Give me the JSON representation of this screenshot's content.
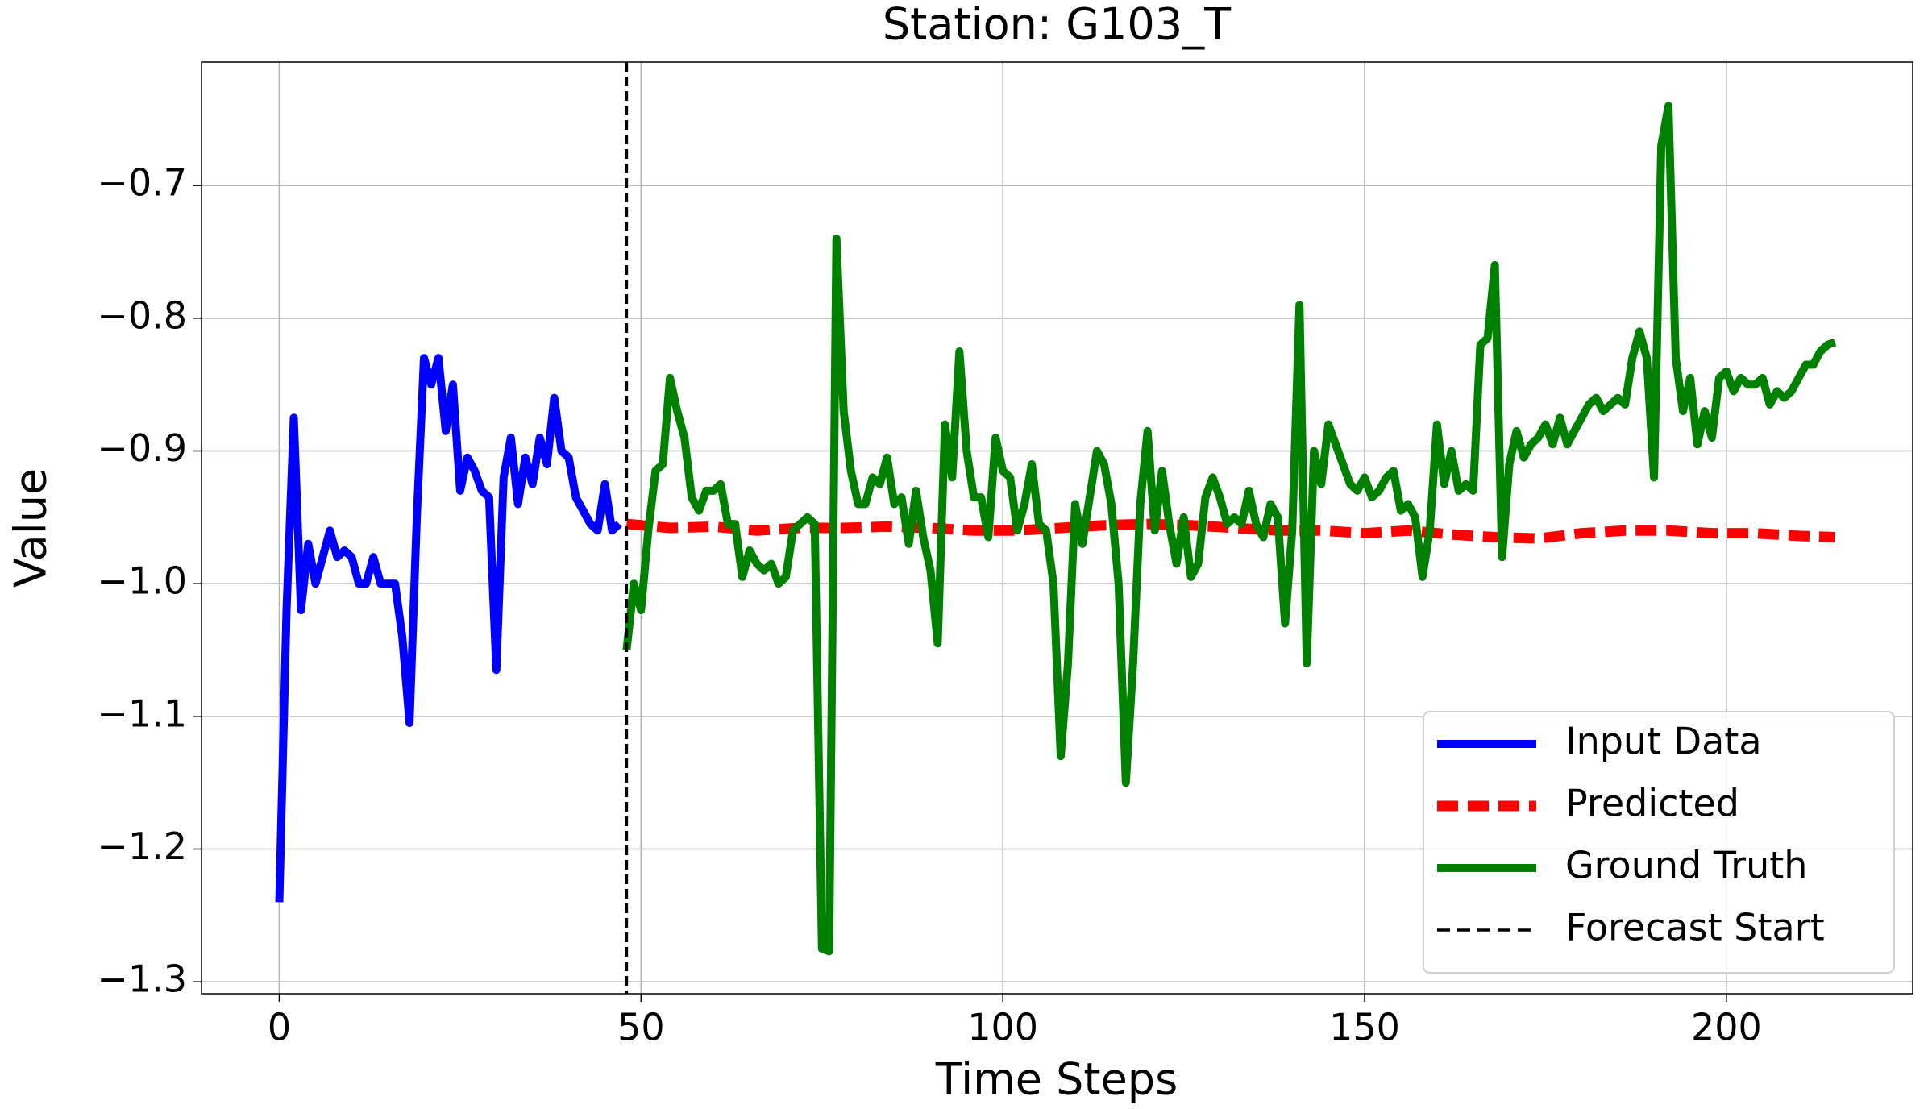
{
  "chart_data": {
    "type": "line",
    "title": "Station: G103_T",
    "xlabel": "Time Steps",
    "ylabel": "Value",
    "xlim": [
      -10.75,
      225.75
    ],
    "ylim": [
      -1.309,
      -0.607
    ],
    "xticks": [
      0,
      50,
      100,
      150,
      200
    ],
    "yticks": [
      {
        "value": -1.3,
        "label": "−1.3"
      },
      {
        "value": -1.2,
        "label": "−1.2"
      },
      {
        "value": -1.1,
        "label": "−1.1"
      },
      {
        "value": -1.0,
        "label": "−1.0"
      },
      {
        "value": -0.9,
        "label": "−0.9"
      },
      {
        "value": -0.8,
        "label": "−0.8"
      },
      {
        "value": -0.7,
        "label": "−0.7"
      }
    ],
    "grid": true,
    "legend": "lower right",
    "series": [
      {
        "name": "Input Data",
        "color": "#0000ff",
        "style": "solid",
        "x": [
          0,
          1,
          2,
          3,
          4,
          5,
          6,
          7,
          8,
          9,
          10,
          11,
          12,
          13,
          14,
          15,
          16,
          17,
          18,
          19,
          20,
          21,
          22,
          23,
          24,
          25,
          26,
          27,
          28,
          29,
          30,
          31,
          32,
          33,
          34,
          35,
          36,
          37,
          38,
          39,
          40,
          41,
          42,
          43,
          44,
          45,
          46,
          47
        ],
        "values": [
          -1.24,
          -1.02,
          -0.875,
          -1.02,
          -0.97,
          -1.0,
          -0.98,
          -0.96,
          -0.98,
          -0.975,
          -0.98,
          -1.0,
          -1.0,
          -0.98,
          -1.0,
          -1.0,
          -1.0,
          -1.04,
          -1.105,
          -0.95,
          -0.83,
          -0.85,
          -0.83,
          -0.885,
          -0.85,
          -0.93,
          -0.905,
          -0.915,
          -0.93,
          -0.935,
          -1.065,
          -0.92,
          -0.89,
          -0.94,
          -0.905,
          -0.925,
          -0.89,
          -0.91,
          -0.86,
          -0.9,
          -0.905,
          -0.935,
          -0.945,
          -0.955,
          -0.96,
          -0.925,
          -0.96,
          -0.955
        ]
      },
      {
        "name": "Predicted",
        "color": "#ff0000",
        "style": "dashed",
        "x": [
          48,
          54,
          60,
          66,
          72,
          78,
          84,
          90,
          96,
          102,
          108,
          114,
          120,
          126,
          132,
          138,
          144,
          150,
          156,
          162,
          168,
          174,
          180,
          186,
          192,
          198,
          204,
          210,
          215
        ],
        "values": [
          -0.955,
          -0.958,
          -0.957,
          -0.96,
          -0.958,
          -0.958,
          -0.957,
          -0.958,
          -0.96,
          -0.96,
          -0.958,
          -0.956,
          -0.955,
          -0.956,
          -0.958,
          -0.96,
          -0.96,
          -0.962,
          -0.96,
          -0.963,
          -0.965,
          -0.966,
          -0.962,
          -0.96,
          -0.96,
          -0.962,
          -0.962,
          -0.964,
          -0.965
        ]
      },
      {
        "name": "Ground Truth",
        "color": "#008000",
        "style": "solid",
        "x": [
          48,
          49,
          50,
          51,
          52,
          53,
          54,
          55,
          56,
          57,
          58,
          59,
          60,
          61,
          62,
          63,
          64,
          65,
          66,
          67,
          68,
          69,
          70,
          71,
          72,
          73,
          74,
          75,
          76,
          77,
          78,
          79,
          80,
          81,
          82,
          83,
          84,
          85,
          86,
          87,
          88,
          89,
          90,
          91,
          92,
          93,
          94,
          95,
          96,
          97,
          98,
          99,
          100,
          101,
          102,
          103,
          104,
          105,
          106,
          107,
          108,
          109,
          110,
          111,
          112,
          113,
          114,
          115,
          116,
          117,
          118,
          119,
          120,
          121,
          122,
          123,
          124,
          125,
          126,
          127,
          128,
          129,
          130,
          131,
          132,
          133,
          134,
          135,
          136,
          137,
          138,
          139,
          140,
          141,
          142,
          143,
          144,
          145,
          146,
          147,
          148,
          149,
          150,
          151,
          152,
          153,
          154,
          155,
          156,
          157,
          158,
          159,
          160,
          161,
          162,
          163,
          164,
          165,
          166,
          167,
          168,
          169,
          170,
          171,
          172,
          173,
          174,
          175,
          176,
          177,
          178,
          179,
          180,
          181,
          182,
          183,
          184,
          185,
          186,
          187,
          188,
          189,
          190,
          191,
          192,
          193,
          194,
          195,
          196,
          197,
          198,
          199,
          200,
          201,
          202,
          203,
          204,
          205,
          206,
          207,
          208,
          209,
          210,
          211,
          212,
          213,
          214,
          215
        ],
        "values": [
          -1.05,
          -1.0,
          -1.02,
          -0.96,
          -0.915,
          -0.91,
          -0.845,
          -0.87,
          -0.89,
          -0.935,
          -0.945,
          -0.93,
          -0.93,
          -0.925,
          -0.955,
          -0.955,
          -0.995,
          -0.975,
          -0.985,
          -0.99,
          -0.985,
          -1.0,
          -0.995,
          -0.96,
          -0.955,
          -0.95,
          -0.955,
          -1.275,
          -1.277,
          -0.74,
          -0.87,
          -0.915,
          -0.94,
          -0.94,
          -0.92,
          -0.925,
          -0.905,
          -0.94,
          -0.935,
          -0.97,
          -0.93,
          -0.965,
          -0.99,
          -1.045,
          -0.88,
          -0.92,
          -0.825,
          -0.9,
          -0.935,
          -0.935,
          -0.965,
          -0.89,
          -0.915,
          -0.92,
          -0.96,
          -0.94,
          -0.91,
          -0.955,
          -0.96,
          -1.0,
          -1.13,
          -1.06,
          -0.94,
          -0.97,
          -0.935,
          -0.9,
          -0.91,
          -0.94,
          -1.0,
          -1.15,
          -1.06,
          -0.94,
          -0.885,
          -0.96,
          -0.915,
          -0.955,
          -0.985,
          -0.95,
          -0.995,
          -0.985,
          -0.935,
          -0.92,
          -0.935,
          -0.955,
          -0.95,
          -0.955,
          -0.93,
          -0.955,
          -0.965,
          -0.94,
          -0.95,
          -1.03,
          -0.96,
          -0.79,
          -1.06,
          -0.9,
          -0.925,
          -0.88,
          -0.895,
          -0.91,
          -0.925,
          -0.93,
          -0.92,
          -0.935,
          -0.93,
          -0.92,
          -0.915,
          -0.945,
          -0.94,
          -0.95,
          -0.995,
          -0.96,
          -0.88,
          -0.925,
          -0.9,
          -0.93,
          -0.925,
          -0.93,
          -0.82,
          -0.815,
          -0.76,
          -0.98,
          -0.91,
          -0.885,
          -0.905,
          -0.895,
          -0.89,
          -0.88,
          -0.895,
          -0.875,
          -0.895,
          -0.885,
          -0.875,
          -0.865,
          -0.86,
          -0.87,
          -0.865,
          -0.86,
          -0.865,
          -0.83,
          -0.81,
          -0.83,
          -0.92,
          -0.67,
          -0.64,
          -0.83,
          -0.87,
          -0.845,
          -0.895,
          -0.87,
          -0.89,
          -0.845,
          -0.84,
          -0.855,
          -0.845,
          -0.85,
          -0.85,
          -0.845,
          -0.865,
          -0.855,
          -0.86,
          -0.855,
          -0.845,
          -0.835,
          -0.835,
          -0.825,
          -0.82,
          -0.818
        ]
      }
    ],
    "vline": {
      "name": "Forecast Start",
      "x": 48,
      "color": "#000000",
      "style": "dashed"
    }
  }
}
